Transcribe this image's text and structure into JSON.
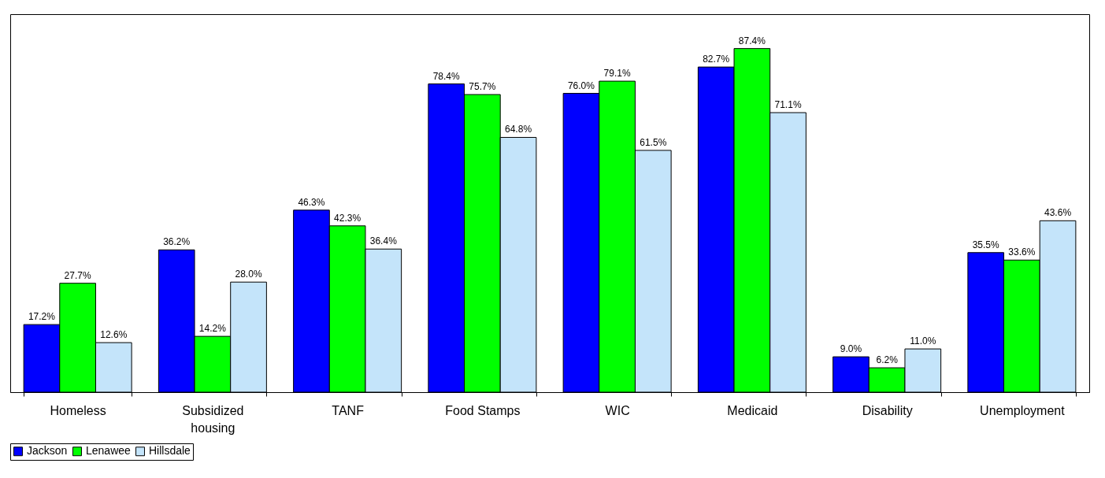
{
  "chart_data": {
    "type": "bar",
    "categories": [
      "Homeless",
      "Subsidized housing",
      "TANF",
      "Food Stamps",
      "WIC",
      "Medicaid",
      "Disability",
      "Unemployment"
    ],
    "series": [
      {
        "name": "Jackson",
        "color": "#0000ff",
        "values": [
          17.2,
          36.2,
          46.3,
          78.4,
          76.0,
          82.7,
          9.0,
          35.5
        ],
        "value_labels": [
          "17.2%",
          "36.2%",
          "46.3%",
          "78.4%",
          "76.0%",
          "82.7%",
          "9.0%",
          "35.5%"
        ]
      },
      {
        "name": "Lenawee",
        "color": "#00ff00",
        "values": [
          27.7,
          14.2,
          42.3,
          75.7,
          79.1,
          87.4,
          6.2,
          33.6
        ],
        "value_labels": [
          "27.7%",
          "14.2%",
          "42.3%",
          "75.7%",
          "79.1%",
          "87.4%",
          "6.2%",
          "33.6%"
        ]
      },
      {
        "name": "Hillsdale",
        "color": "#c4e4fa",
        "values": [
          12.6,
          28.0,
          36.4,
          64.8,
          61.5,
          71.1,
          11.0,
          43.6
        ],
        "value_labels": [
          "12.6%",
          "28.0%",
          "36.4%",
          "64.8%",
          "61.5%",
          "71.1%",
          "11.0%",
          "43.6%"
        ]
      }
    ],
    "legend": "bottom"
  }
}
